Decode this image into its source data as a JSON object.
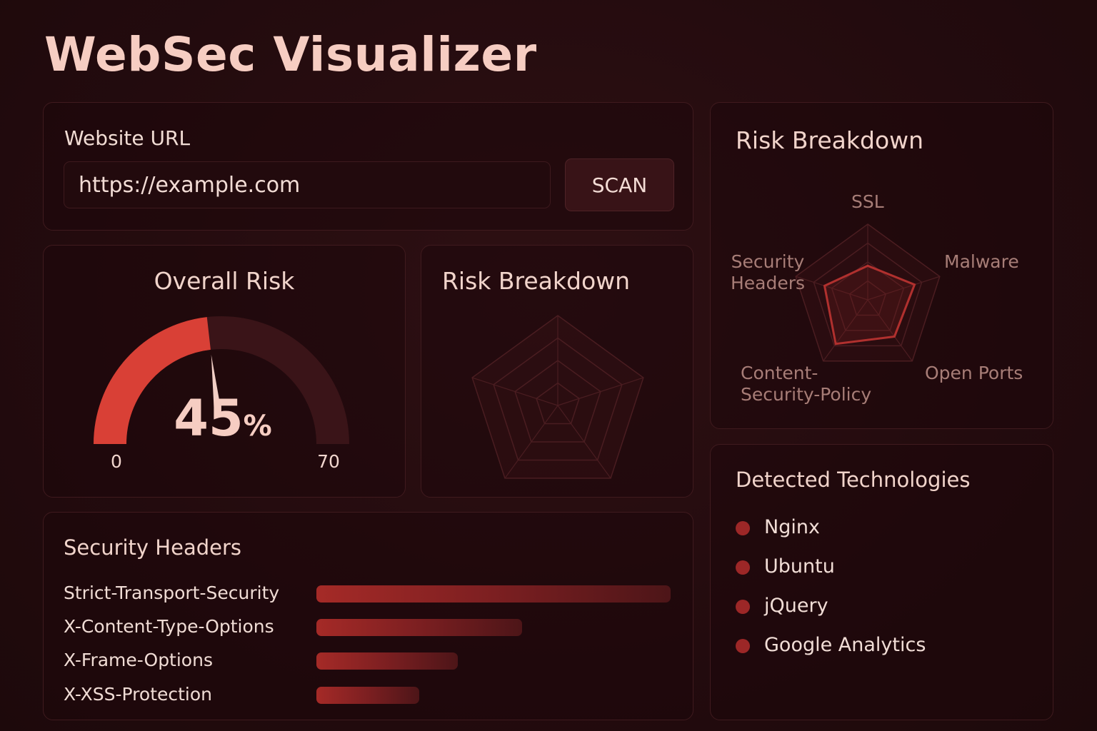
{
  "app": {
    "title": "WebSec Visualizer"
  },
  "url_card": {
    "label": "Website URL",
    "input_value": "https://example.com",
    "scan_label": "SCAN"
  },
  "overall_risk": {
    "title": "Overall Risk",
    "value": 45,
    "value_label": "45",
    "unit": "%",
    "min_label": "0",
    "max_label": "70",
    "fill_color": "#d94036"
  },
  "breakdown_mid": {
    "title": "Risk Breakdown"
  },
  "breakdown_right": {
    "title": "Risk Breakdown",
    "axes": [
      {
        "label": "SSL",
        "value": 0.45
      },
      {
        "label": "Malware",
        "value": 0.65
      },
      {
        "label": "Open Ports",
        "value": 0.6
      },
      {
        "label": "Content-Security-Policy",
        "label_lines": [
          "Content-",
          "Security-Policy"
        ],
        "value": 0.72
      },
      {
        "label": "Security Headers",
        "label_lines": [
          "Security",
          "Headers"
        ],
        "value": 0.6
      }
    ]
  },
  "security_headers": {
    "title": "Security Headers",
    "items": [
      {
        "name": "Strict-Transport-Security",
        "value": 1.0
      },
      {
        "name": "X-Content-Type-Options",
        "value": 0.58
      },
      {
        "name": "X-Frame-Options",
        "value": 0.4
      },
      {
        "name": "X-XSS-Protection",
        "value": 0.29
      }
    ]
  },
  "technologies": {
    "title": "Detected Technologies",
    "items": [
      "Nginx",
      "Ubuntu",
      "jQuery",
      "Google Analytics"
    ]
  },
  "colors": {
    "accent": "#d94036",
    "card_border": "#3f1a1e",
    "text": "#f3d2c9"
  }
}
